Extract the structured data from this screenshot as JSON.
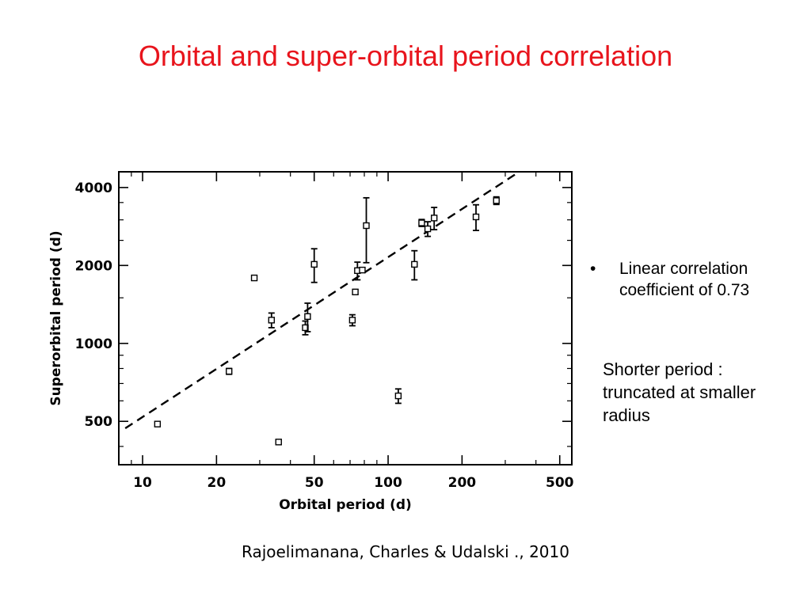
{
  "slide": {
    "title": "Orbital and super-orbital period correlation",
    "bullet_marker": "•",
    "bullet_text": "Linear correlation coefficient of 0.73",
    "note": "Shorter period : truncated at smaller radius",
    "citation": "Rajoelimanana, Charles & Udalski ., 2010"
  },
  "chart_data": {
    "type": "scatter",
    "title": "",
    "xlabel": "Orbital period (d)",
    "ylabel": "Superorbital period (d)",
    "xscale": "log",
    "yscale": "log",
    "xlim": [
      8,
      560
    ],
    "ylim": [
      340,
      4600
    ],
    "x_ticks": [
      10,
      20,
      50,
      100,
      200,
      500
    ],
    "x_tick_labels": [
      "10",
      "20",
      "50",
      "100",
      "200",
      "500"
    ],
    "y_ticks": [
      500,
      1000,
      2000,
      4000
    ],
    "y_tick_labels": [
      "500",
      "1000",
      "2000",
      "4000"
    ],
    "grid": false,
    "legend": "none",
    "fit_line": {
      "style": "dashed",
      "x": [
        8.5,
        330
      ],
      "y": [
        470,
        4500
      ]
    },
    "points": [
      {
        "x": 11.5,
        "y": 488,
        "yerr": 10
      },
      {
        "x": 22.5,
        "y": 780,
        "yerr": 20
      },
      {
        "x": 28.5,
        "y": 1790,
        "yerr": 30
      },
      {
        "x": 33.5,
        "y": 1230,
        "yerr": 80
      },
      {
        "x": 35.8,
        "y": 416,
        "yerr": 8
      },
      {
        "x": 46.0,
        "y": 1150,
        "yerr": 70
      },
      {
        "x": 47.0,
        "y": 1270,
        "yerr": 160
      },
      {
        "x": 50.0,
        "y": 2020,
        "yerr": 300
      },
      {
        "x": 71.5,
        "y": 1230,
        "yerr": 60
      },
      {
        "x": 73.5,
        "y": 1580,
        "yerr": 30
      },
      {
        "x": 75.0,
        "y": 1910,
        "yerr": 150
      },
      {
        "x": 78.5,
        "y": 1920,
        "yerr": 40
      },
      {
        "x": 81.5,
        "y": 2850,
        "yerr": 800
      },
      {
        "x": 110.0,
        "y": 627,
        "yerr": 40
      },
      {
        "x": 128.0,
        "y": 2020,
        "yerr": 260
      },
      {
        "x": 137.0,
        "y": 2920,
        "yerr": 90
      },
      {
        "x": 145.0,
        "y": 2770,
        "yerr": 180
      },
      {
        "x": 154.0,
        "y": 3050,
        "yerr": 300
      },
      {
        "x": 228.0,
        "y": 3080,
        "yerr": 350
      },
      {
        "x": 276.0,
        "y": 3560,
        "yerr": 120
      }
    ]
  }
}
